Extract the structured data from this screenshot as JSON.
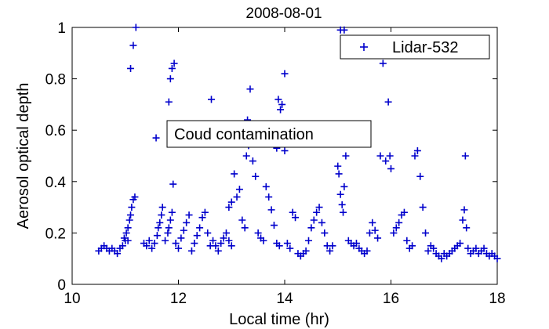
{
  "chart_data": {
    "type": "scatter",
    "title": "2008-08-01",
    "xlabel": "Local time (hr)",
    "ylabel": "Aerosol optical depth",
    "xlim": [
      10,
      18
    ],
    "ylim": [
      0,
      1
    ],
    "xticks": [
      10,
      12,
      14,
      16,
      18
    ],
    "yticks": [
      0,
      0.2,
      0.4,
      0.6,
      0.8,
      1
    ],
    "grid": false,
    "legend_position": "top-right",
    "annotation": "Coud contamination",
    "series": [
      {
        "name": "Lidar-532",
        "color": "#0000cc",
        "marker": "plus",
        "points": [
          [
            10.5,
            0.13
          ],
          [
            10.55,
            0.14
          ],
          [
            10.6,
            0.15
          ],
          [
            10.65,
            0.14
          ],
          [
            10.7,
            0.13
          ],
          [
            10.75,
            0.14
          ],
          [
            10.8,
            0.13
          ],
          [
            10.85,
            0.12
          ],
          [
            10.9,
            0.14
          ],
          [
            10.95,
            0.15
          ],
          [
            11.0,
            0.17
          ],
          [
            11.02,
            0.2
          ],
          [
            11.05,
            0.22
          ],
          [
            11.08,
            0.25
          ],
          [
            11.1,
            0.27
          ],
          [
            11.12,
            0.3
          ],
          [
            11.15,
            0.33
          ],
          [
            11.18,
            0.34
          ],
          [
            10.98,
            0.18
          ],
          [
            11.05,
            0.17
          ],
          [
            11.1,
            0.84
          ],
          [
            11.15,
            0.93
          ],
          [
            11.2,
            1.0
          ],
          [
            11.35,
            0.16
          ],
          [
            11.4,
            0.15
          ],
          [
            11.45,
            0.17
          ],
          [
            11.5,
            0.14
          ],
          [
            11.55,
            0.16
          ],
          [
            11.6,
            0.19
          ],
          [
            11.62,
            0.22
          ],
          [
            11.65,
            0.24
          ],
          [
            11.68,
            0.27
          ],
          [
            11.7,
            0.3
          ],
          [
            11.58,
            0.57
          ],
          [
            11.75,
            0.17
          ],
          [
            11.8,
            0.2
          ],
          [
            11.82,
            0.22
          ],
          [
            11.85,
            0.25
          ],
          [
            11.88,
            0.28
          ],
          [
            11.9,
            0.39
          ],
          [
            11.82,
            0.71
          ],
          [
            11.85,
            0.8
          ],
          [
            11.88,
            0.84
          ],
          [
            11.92,
            0.86
          ],
          [
            11.95,
            0.16
          ],
          [
            12.0,
            0.14
          ],
          [
            12.05,
            0.18
          ],
          [
            12.1,
            0.21
          ],
          [
            12.15,
            0.24
          ],
          [
            12.2,
            0.27
          ],
          [
            12.05,
            0.6
          ],
          [
            12.25,
            0.13
          ],
          [
            12.3,
            0.16
          ],
          [
            12.35,
            0.19
          ],
          [
            12.4,
            0.22
          ],
          [
            12.45,
            0.26
          ],
          [
            12.5,
            0.28
          ],
          [
            12.55,
            0.2
          ],
          [
            12.6,
            0.15
          ],
          [
            12.62,
            0.72
          ],
          [
            12.65,
            0.17
          ],
          [
            12.7,
            0.15
          ],
          [
            12.75,
            0.13
          ],
          [
            12.8,
            0.16
          ],
          [
            12.85,
            0.18
          ],
          [
            12.9,
            0.2
          ],
          [
            12.95,
            0.17
          ],
          [
            13.0,
            0.15
          ],
          [
            12.95,
            0.3
          ],
          [
            13.0,
            0.32
          ],
          [
            13.05,
            0.43
          ],
          [
            13.1,
            0.34
          ],
          [
            13.15,
            0.37
          ],
          [
            13.2,
            0.25
          ],
          [
            13.25,
            0.22
          ],
          [
            13.28,
            0.5
          ],
          [
            13.3,
            0.64
          ],
          [
            13.32,
            0.54
          ],
          [
            13.35,
            0.76
          ],
          [
            13.4,
            0.48
          ],
          [
            13.45,
            0.42
          ],
          [
            13.5,
            0.2
          ],
          [
            13.55,
            0.18
          ],
          [
            13.6,
            0.17
          ],
          [
            13.65,
            0.38
          ],
          [
            13.7,
            0.34
          ],
          [
            13.75,
            0.29
          ],
          [
            13.8,
            0.23
          ],
          [
            13.85,
            0.16
          ],
          [
            13.9,
            0.15
          ],
          [
            13.95,
            0.57
          ],
          [
            14.0,
            0.52
          ],
          [
            13.92,
            0.68
          ],
          [
            13.95,
            0.7
          ],
          [
            14.0,
            0.82
          ],
          [
            13.88,
            0.72
          ],
          [
            13.85,
            0.53
          ],
          [
            13.9,
            0.61
          ],
          [
            14.05,
            0.16
          ],
          [
            14.1,
            0.14
          ],
          [
            14.15,
            0.28
          ],
          [
            14.2,
            0.26
          ],
          [
            14.25,
            0.12
          ],
          [
            14.3,
            0.11
          ],
          [
            14.35,
            0.12
          ],
          [
            14.4,
            0.13
          ],
          [
            14.45,
            0.17
          ],
          [
            14.5,
            0.22
          ],
          [
            14.55,
            0.25
          ],
          [
            14.6,
            0.28
          ],
          [
            14.65,
            0.3
          ],
          [
            14.7,
            0.24
          ],
          [
            14.75,
            0.2
          ],
          [
            14.8,
            0.15
          ],
          [
            14.85,
            0.13
          ],
          [
            14.9,
            0.15
          ],
          [
            14.95,
            0.6
          ],
          [
            15.0,
            0.46
          ],
          [
            15.02,
            0.43
          ],
          [
            15.05,
            0.35
          ],
          [
            15.08,
            0.31
          ],
          [
            15.1,
            0.28
          ],
          [
            15.12,
            0.38
          ],
          [
            15.15,
            0.5
          ],
          [
            15.05,
            0.99
          ],
          [
            15.12,
            0.99
          ],
          [
            15.2,
            0.17
          ],
          [
            15.25,
            0.16
          ],
          [
            15.3,
            0.15
          ],
          [
            15.35,
            0.16
          ],
          [
            15.4,
            0.14
          ],
          [
            15.45,
            0.13
          ],
          [
            15.5,
            0.12
          ],
          [
            15.55,
            0.13
          ],
          [
            15.6,
            0.2
          ],
          [
            15.65,
            0.24
          ],
          [
            15.7,
            0.21
          ],
          [
            15.75,
            0.18
          ],
          [
            15.8,
            0.5
          ],
          [
            15.85,
            0.86
          ],
          [
            15.9,
            0.48
          ],
          [
            15.95,
            0.71
          ],
          [
            15.98,
            0.5
          ],
          [
            16.0,
            0.45
          ],
          [
            16.05,
            0.2
          ],
          [
            16.1,
            0.22
          ],
          [
            16.15,
            0.24
          ],
          [
            16.2,
            0.27
          ],
          [
            16.25,
            0.28
          ],
          [
            16.3,
            0.17
          ],
          [
            16.35,
            0.14
          ],
          [
            16.4,
            0.15
          ],
          [
            16.45,
            0.5
          ],
          [
            16.5,
            0.52
          ],
          [
            16.55,
            0.42
          ],
          [
            16.6,
            0.3
          ],
          [
            16.65,
            0.2
          ],
          [
            16.7,
            0.13
          ],
          [
            16.75,
            0.15
          ],
          [
            16.8,
            0.14
          ],
          [
            16.85,
            0.12
          ],
          [
            16.9,
            0.11
          ],
          [
            16.95,
            0.1
          ],
          [
            17.0,
            0.12
          ],
          [
            17.05,
            0.11
          ],
          [
            17.1,
            0.12
          ],
          [
            17.15,
            0.13
          ],
          [
            17.2,
            0.14
          ],
          [
            17.25,
            0.15
          ],
          [
            17.3,
            0.16
          ],
          [
            17.35,
            0.25
          ],
          [
            17.38,
            0.29
          ],
          [
            17.4,
            0.5
          ],
          [
            17.42,
            0.22
          ],
          [
            17.45,
            0.14
          ],
          [
            17.5,
            0.12
          ],
          [
            17.55,
            0.13
          ],
          [
            17.6,
            0.14
          ],
          [
            17.65,
            0.12
          ],
          [
            17.7,
            0.13
          ],
          [
            17.75,
            0.14
          ],
          [
            17.8,
            0.12
          ],
          [
            17.85,
            0.11
          ],
          [
            17.9,
            0.12
          ],
          [
            17.95,
            0.11
          ],
          [
            18.0,
            0.1
          ]
        ]
      }
    ]
  }
}
